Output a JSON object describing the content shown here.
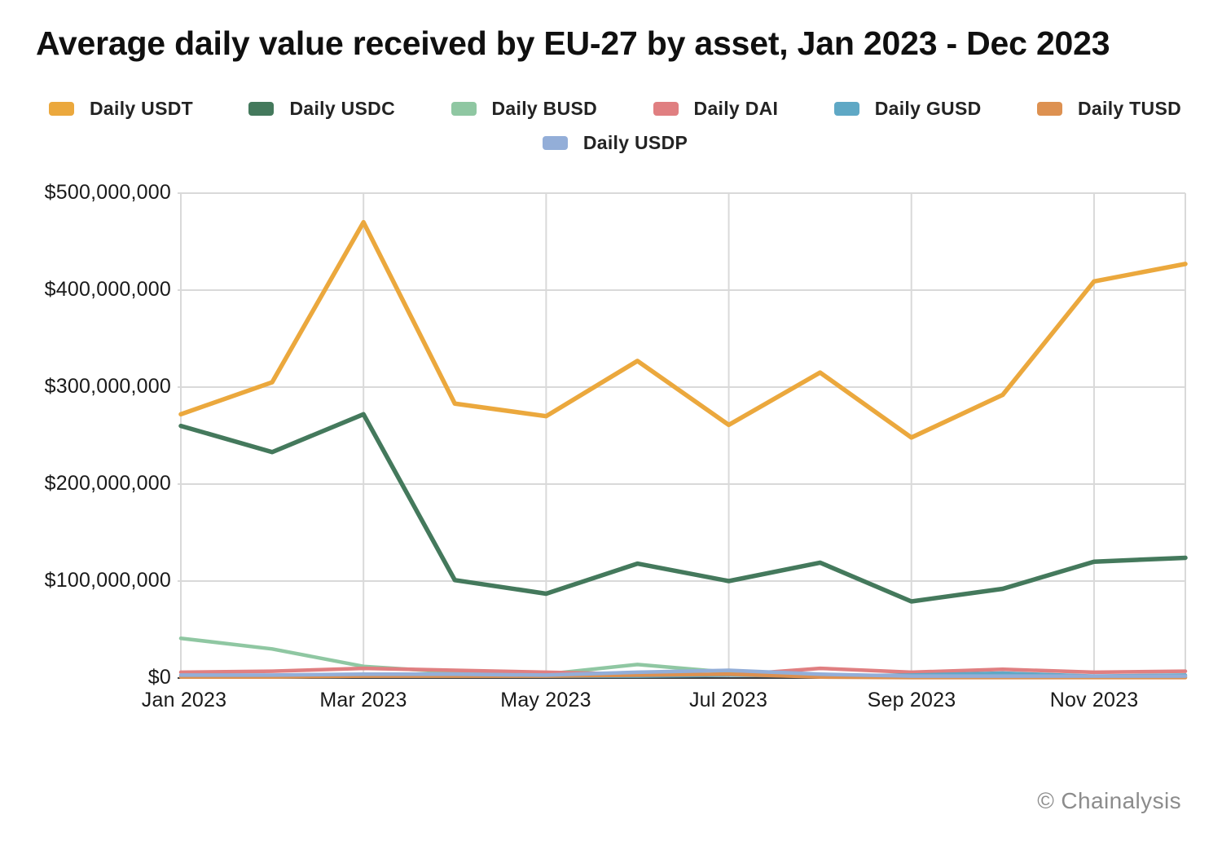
{
  "title": "Average daily value received by EU-27 by asset, Jan 2023 - Dec 2023",
  "footer": {
    "credit": "© Chainalysis"
  },
  "legend": {
    "items": [
      {
        "label": "Daily USDT",
        "color": "#EBA83D"
      },
      {
        "label": "Daily USDC",
        "color": "#44795C"
      },
      {
        "label": "Daily BUSD",
        "color": "#8FC7A2"
      },
      {
        "label": "Daily DAI",
        "color": "#E07F81"
      },
      {
        "label": "Daily GUSD",
        "color": "#5FA8C5"
      },
      {
        "label": "Daily TUSD",
        "color": "#DD9151"
      },
      {
        "label": "Daily USDP",
        "color": "#93AED8"
      }
    ]
  },
  "chart_data": {
    "type": "line",
    "title": "Average daily value received by EU-27 by asset, Jan 2023 - Dec 2023",
    "xlabel": "",
    "ylabel": "",
    "x": [
      "Jan 2023",
      "Feb 2023",
      "Mar 2023",
      "Apr 2023",
      "May 2023",
      "Jun 2023",
      "Jul 2023",
      "Aug 2023",
      "Sep 2023",
      "Oct 2023",
      "Nov 2023",
      "Dec 2023"
    ],
    "x_tick_labels": [
      "Jan 2023",
      "Mar 2023",
      "May 2023",
      "Jul 2023",
      "Sep 2023",
      "Nov 2023"
    ],
    "y_tick_labels": [
      "$0",
      "$100,000,000",
      "$200,000,000",
      "$300,000,000",
      "$400,000,000",
      "$500,000,000"
    ],
    "ylim": [
      0,
      500000000
    ],
    "grid": true,
    "legend_position": "top",
    "series": [
      {
        "name": "Daily USDT",
        "color": "#EBA83D",
        "values": [
          272000000,
          305000000,
          470000000,
          283000000,
          270000000,
          327000000,
          261000000,
          315000000,
          248000000,
          292000000,
          409000000,
          427000000
        ]
      },
      {
        "name": "Daily USDC",
        "color": "#44795C",
        "values": [
          260000000,
          233000000,
          272000000,
          101000000,
          87000000,
          118000000,
          100000000,
          119000000,
          79000000,
          92000000,
          120000000,
          124000000
        ]
      },
      {
        "name": "Daily BUSD",
        "color": "#8FC7A2",
        "values": [
          41000000,
          30000000,
          12000000,
          6000000,
          4000000,
          14000000,
          6000000,
          2000000,
          1000000,
          1000000,
          1000000,
          1000000
        ]
      },
      {
        "name": "Daily DAI",
        "color": "#E07F81",
        "values": [
          6000000,
          7000000,
          10000000,
          8000000,
          6000000,
          4000000,
          3000000,
          10000000,
          6000000,
          9000000,
          6000000,
          7000000
        ]
      },
      {
        "name": "Daily GUSD",
        "color": "#5FA8C5",
        "values": [
          1000000,
          1000000,
          2000000,
          2000000,
          2000000,
          2000000,
          3000000,
          2000000,
          3000000,
          5000000,
          2000000,
          3000000
        ]
      },
      {
        "name": "Daily TUSD",
        "color": "#DD9151",
        "values": [
          1000000,
          1000000,
          2000000,
          2000000,
          2000000,
          3000000,
          4000000,
          1000000,
          500000,
          500000,
          500000,
          500000
        ]
      },
      {
        "name": "Daily USDP",
        "color": "#93AED8",
        "values": [
          3000000,
          3000000,
          4000000,
          4000000,
          3000000,
          6000000,
          8000000,
          4000000,
          2000000,
          2000000,
          2000000,
          2000000
        ]
      }
    ]
  }
}
